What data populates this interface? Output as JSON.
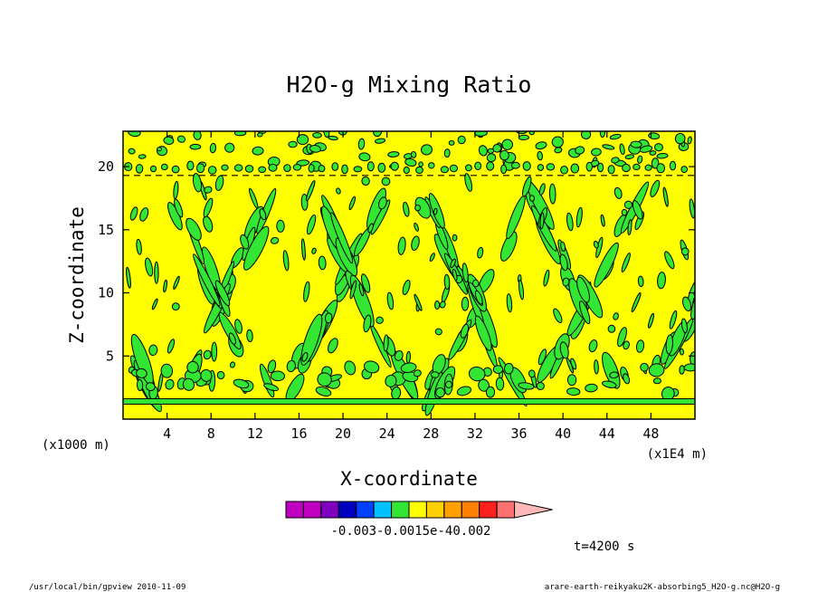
{
  "chart_data": {
    "type": "heatmap",
    "title": "H2O-g Mixing Ratio",
    "xlabel": "X-coordinate",
    "ylabel": "Z-coordinate",
    "x_unit": "(x1E4 m)",
    "y_unit": "(x1000 m)",
    "xlim": [
      0,
      52
    ],
    "ylim": [
      0,
      22.8
    ],
    "x_ticks": [
      "4",
      "8",
      "12",
      "16",
      "20",
      "24",
      "28",
      "32",
      "36",
      "40",
      "44",
      "48"
    ],
    "y_ticks": [
      "5",
      "10",
      "15",
      "20"
    ],
    "x_tick_values": [
      4,
      8,
      12,
      16,
      20,
      24,
      28,
      32,
      36,
      40,
      44,
      48
    ],
    "y_tick_values": [
      5,
      10,
      15,
      20
    ],
    "background_level_color": "#ffff00",
    "contour_level_color": "#33e633",
    "line_color": "#000000",
    "horizontal_layer_z": 1.4,
    "dashed_layer_z": 19.3,
    "colorbar": {
      "colors": [
        "#c000c0",
        "#c000c0",
        "#8000c0",
        "#0000c0",
        "#0040ff",
        "#00c0ff",
        "#33e633",
        "#ffff00",
        "#ffd000",
        "#ffa000",
        "#ff8000",
        "#ff2020",
        "#ff7070",
        "#ffb8b8"
      ],
      "tick_text": "-0.003-0.0015e-40.002"
    },
    "time_label": "t=4200 s"
  },
  "footer": {
    "left": "/usr/local/bin/gpview  2010-11-09",
    "right": "arare-earth-reikyaku2K-absorbing5_H2O-g.nc@H2O-g"
  }
}
